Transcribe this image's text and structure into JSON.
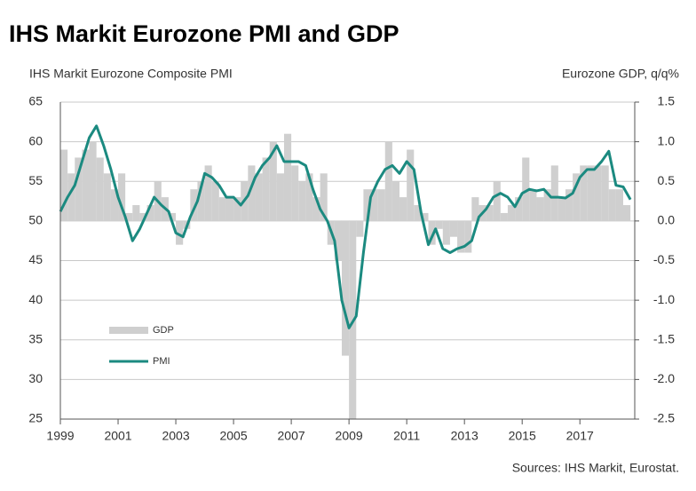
{
  "chart_data": {
    "type": "combo",
    "title": "IHS Markit Eurozone PMI and GDP",
    "y_label": "IHS Markit Eurozone Composite PMI",
    "y2_label": "Eurozone GDP, q/q%",
    "source": "Sources: IHS Markit, Eurostat.",
    "xlim": [
      1999,
      2018.9
    ],
    "xticks": [
      1999,
      2001,
      2003,
      2005,
      2007,
      2009,
      2011,
      2013,
      2015,
      2017
    ],
    "ylim": [
      25,
      65
    ],
    "yticks": [
      25,
      30,
      35,
      40,
      45,
      50,
      55,
      60,
      65
    ],
    "y2lim": [
      -2.5,
      1.5
    ],
    "y2ticks": [
      {
        "value": -2.5,
        "label": "-2.5"
      },
      {
        "value": -2,
        "label": "-2.0"
      },
      {
        "value": -1.5,
        "label": "-1.5"
      },
      {
        "value": -1,
        "label": "-1.0"
      },
      {
        "value": -0.5,
        "label": "-0.5"
      },
      {
        "value": 0,
        "label": "0.0"
      },
      {
        "value": 0.5,
        "label": "0.5"
      },
      {
        "value": 1,
        "label": "1.0"
      },
      {
        "value": 1.5,
        "label": "1.5"
      }
    ],
    "grid": true,
    "legend": "lower-left",
    "series": [
      {
        "name": "GDP",
        "type": "bar",
        "axis": "y2",
        "color": "#cfcfcf",
        "x": [
          1999,
          1999.25,
          1999.5,
          1999.75,
          2000,
          2000.25,
          2000.5,
          2000.75,
          2001,
          2001.25,
          2001.5,
          2001.75,
          2002,
          2002.25,
          2002.5,
          2002.75,
          2003,
          2003.25,
          2003.5,
          2003.75,
          2004,
          2004.25,
          2004.5,
          2004.75,
          2005,
          2005.25,
          2005.5,
          2005.75,
          2006,
          2006.25,
          2006.5,
          2006.75,
          2007,
          2007.25,
          2007.5,
          2007.75,
          2008,
          2008.25,
          2008.5,
          2008.75,
          2009,
          2009.25,
          2009.5,
          2009.75,
          2010,
          2010.25,
          2010.5,
          2010.75,
          2011,
          2011.25,
          2011.5,
          2011.75,
          2012,
          2012.25,
          2012.5,
          2012.75,
          2013,
          2013.25,
          2013.5,
          2013.75,
          2014,
          2014.25,
          2014.5,
          2014.75,
          2015,
          2015.25,
          2015.5,
          2015.75,
          2016,
          2016.25,
          2016.5,
          2016.75,
          2017,
          2017.25,
          2017.5,
          2017.75,
          2018,
          2018.25,
          2018.5
        ],
        "values": [
          0.9,
          0.6,
          0.8,
          0.9,
          1.0,
          0.8,
          0.6,
          0.4,
          0.6,
          0.1,
          0.2,
          0.1,
          0.2,
          0.5,
          0.3,
          0.1,
          -0.3,
          -0.1,
          0.4,
          0.5,
          0.7,
          0.5,
          0.3,
          0.3,
          0.3,
          0.5,
          0.7,
          0.6,
          0.8,
          1.0,
          0.6,
          1.1,
          0.7,
          0.5,
          0.6,
          0.3,
          0.6,
          -0.3,
          -0.5,
          -1.7,
          -2.5,
          -0.2,
          0.4,
          0.4,
          0.4,
          1.0,
          0.5,
          0.3,
          0.9,
          0.2,
          0.1,
          -0.3,
          -0.1,
          -0.3,
          -0.2,
          -0.4,
          -0.4,
          0.3,
          0.2,
          0.2,
          0.5,
          0.1,
          0.2,
          0.3,
          0.8,
          0.4,
          0.3,
          0.4,
          0.7,
          0.3,
          0.4,
          0.6,
          0.7,
          0.7,
          0.7,
          0.7,
          0.4,
          0.4,
          0.2
        ]
      },
      {
        "name": "PMI",
        "type": "line",
        "color": "#1b8a80",
        "x": [
          1999,
          1999.25,
          1999.5,
          1999.75,
          2000,
          2000.25,
          2000.5,
          2000.75,
          2001,
          2001.25,
          2001.5,
          2001.75,
          2002,
          2002.25,
          2002.5,
          2002.75,
          2003,
          2003.25,
          2003.5,
          2003.75,
          2004,
          2004.25,
          2004.5,
          2004.75,
          2005,
          2005.25,
          2005.5,
          2005.75,
          2006,
          2006.25,
          2006.5,
          2006.75,
          2007,
          2007.25,
          2007.5,
          2007.75,
          2008,
          2008.25,
          2008.5,
          2008.75,
          2009,
          2009.25,
          2009.5,
          2009.75,
          2010,
          2010.25,
          2010.5,
          2010.75,
          2011,
          2011.25,
          2011.5,
          2011.75,
          2012,
          2012.25,
          2012.5,
          2012.75,
          2013,
          2013.25,
          2013.5,
          2013.75,
          2014,
          2014.25,
          2014.5,
          2014.75,
          2015,
          2015.25,
          2015.5,
          2015.75,
          2016,
          2016.25,
          2016.5,
          2016.75,
          2017,
          2017.25,
          2017.5,
          2017.75,
          2018,
          2018.25,
          2018.5,
          2018.75
        ],
        "values": [
          51.2,
          53.0,
          54.5,
          57.5,
          60.5,
          62.0,
          59.5,
          56.5,
          53.0,
          50.5,
          47.5,
          49.0,
          51.0,
          53.0,
          52.0,
          51.2,
          48.5,
          48.0,
          50.5,
          52.5,
          56.0,
          55.5,
          54.5,
          53.0,
          53.0,
          52.0,
          53.2,
          55.5,
          57.0,
          58.0,
          59.5,
          57.5,
          57.5,
          57.5,
          57.0,
          54.0,
          51.5,
          50.0,
          47.5,
          40.0,
          36.5,
          38.0,
          46.0,
          53.0,
          55.0,
          56.5,
          57.0,
          56.0,
          57.5,
          56.5,
          51.0,
          47.0,
          49.0,
          46.5,
          46.0,
          46.5,
          46.8,
          47.5,
          50.5,
          51.5,
          53.0,
          53.5,
          53.0,
          51.8,
          53.5,
          54.0,
          53.8,
          54.0,
          53.0,
          53.0,
          52.9,
          53.5,
          55.5,
          56.5,
          56.5,
          57.5,
          58.8,
          54.5,
          54.3,
          52.7
        ]
      }
    ]
  }
}
